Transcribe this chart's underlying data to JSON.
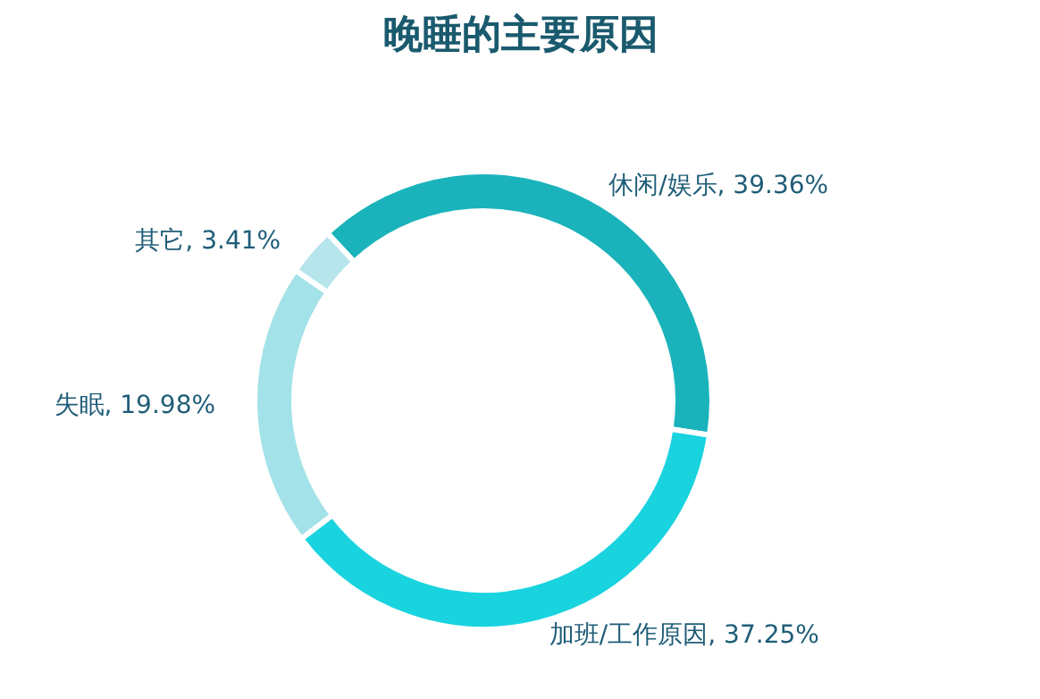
{
  "chart_data": {
    "type": "donut",
    "title": "晚睡的主要原因",
    "categories": [
      "休闲/娱乐",
      "加班/工作原因",
      "失眠",
      "其它"
    ],
    "values": [
      39.36,
      37.25,
      19.98,
      3.41
    ],
    "colors": [
      "#1ab3bb",
      "#19d3df",
      "#a3e2e8",
      "#b6e5eb"
    ],
    "value_labels": [
      "39.36%",
      "37.25%",
      "19.98%",
      "3.41%"
    ]
  }
}
